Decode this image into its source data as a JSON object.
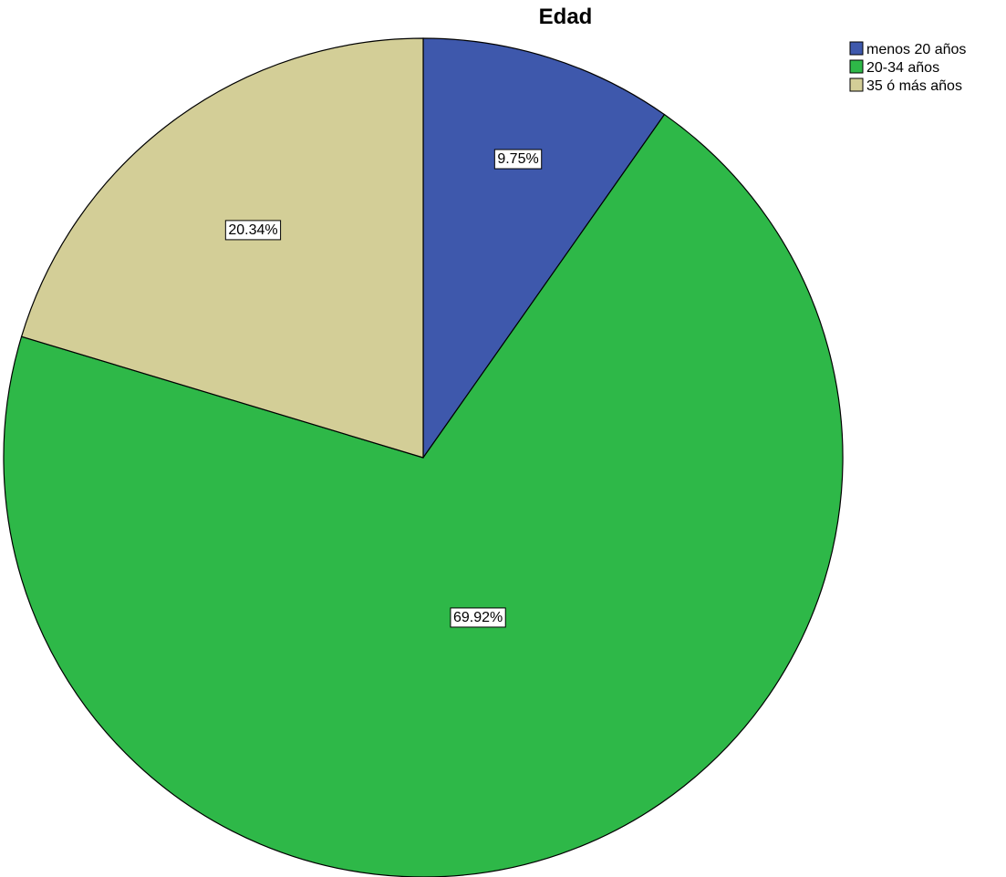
{
  "chart_data": {
    "type": "pie",
    "title": "Edad",
    "categories": [
      "menos 20 años",
      "20-34 años",
      "35 ó más años"
    ],
    "values": [
      9.75,
      69.92,
      20.34
    ],
    "labels": [
      "9.75%",
      "69.92%",
      "20.34%"
    ],
    "colors": [
      "#3e58ac",
      "#2eb848",
      "#d3ce97"
    ],
    "legend_position": "top-right",
    "start_angle": "12 o'clock",
    "direction": "clockwise"
  }
}
